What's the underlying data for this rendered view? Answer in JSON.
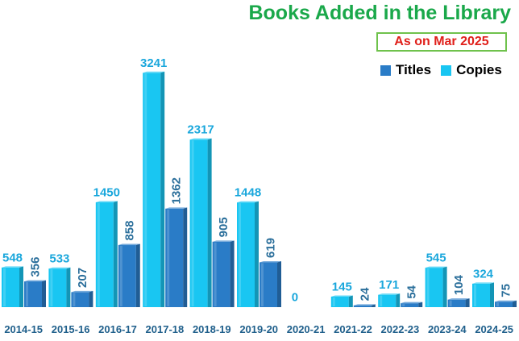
{
  "chart_data": {
    "type": "bar",
    "title": "Books Added in the Library",
    "subtitle": "As on Mar 2025",
    "categories": [
      "2014-15",
      "2015-16",
      "2016-17",
      "2017-18",
      "2018-19",
      "2019-20",
      "2020-21",
      "2021-22",
      "2022-23",
      "2023-24",
      "2024-25"
    ],
    "series": [
      {
        "name": "Titles",
        "values": [
          356,
          207,
          858,
          1362,
          905,
          619,
          0,
          24,
          54,
          104,
          75
        ]
      },
      {
        "name": "Copies",
        "values": [
          548,
          533,
          1450,
          3241,
          2317,
          1448,
          0,
          145,
          171,
          545,
          324
        ]
      }
    ],
    "data_labels": true,
    "legend_position": "top-right",
    "grid": false,
    "colors": {
      "titles": "#2a7cc7",
      "copies": "#19c6f2",
      "label_titles": "#2b6f9b",
      "label_copies": "#1aa7dc",
      "axis_text": "#1f5f8b",
      "title": "#1aa84a",
      "subtitle": "#e0201b"
    }
  }
}
